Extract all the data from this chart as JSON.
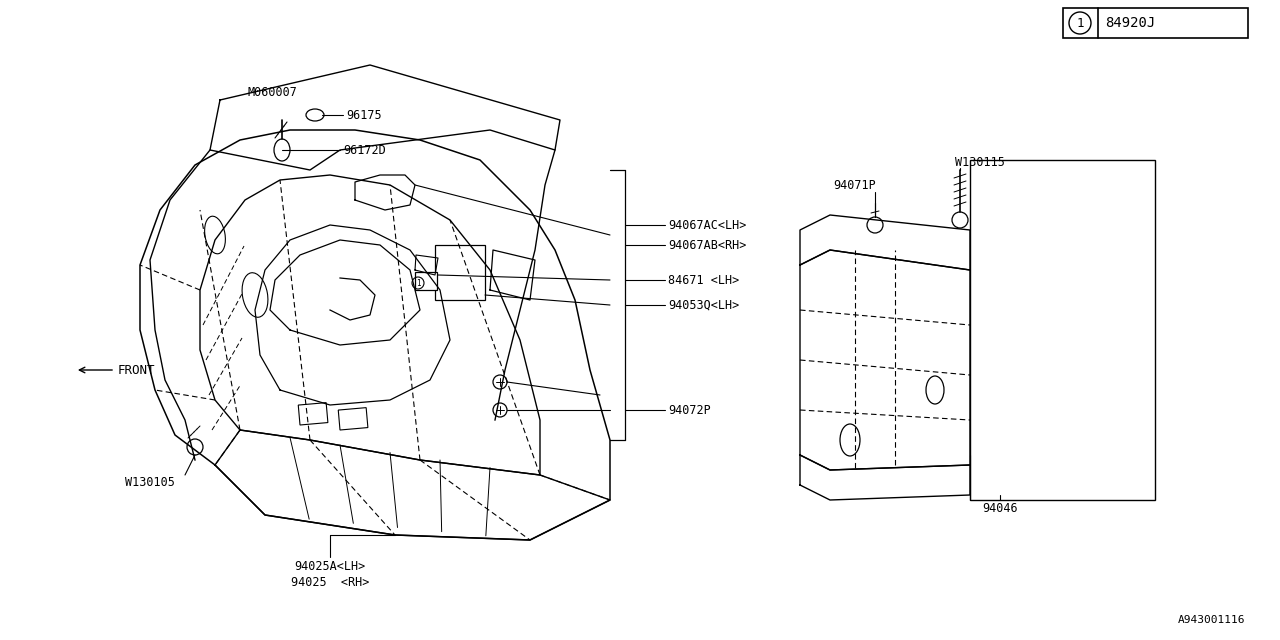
{
  "bg_color": "#ffffff",
  "line_color": "#000000",
  "title_box_label": "84920J",
  "bottom_right_label": "A943001116",
  "labels": {
    "top1": "94025  <RH>",
    "top2": "94025A<LH>",
    "w130105": "W130105",
    "front": "FRONT",
    "94072P": "94072P",
    "94053Q": "94053Q<LH>",
    "84671": "84671 <LH>",
    "94067AB": "94067AB<RH>",
    "94067AC": "94067AC<LH>",
    "96172D": "96172D",
    "96175": "96175",
    "M060007": "M060007",
    "94046": "94046",
    "94071P": "94071P",
    "W130115": "W130115"
  }
}
